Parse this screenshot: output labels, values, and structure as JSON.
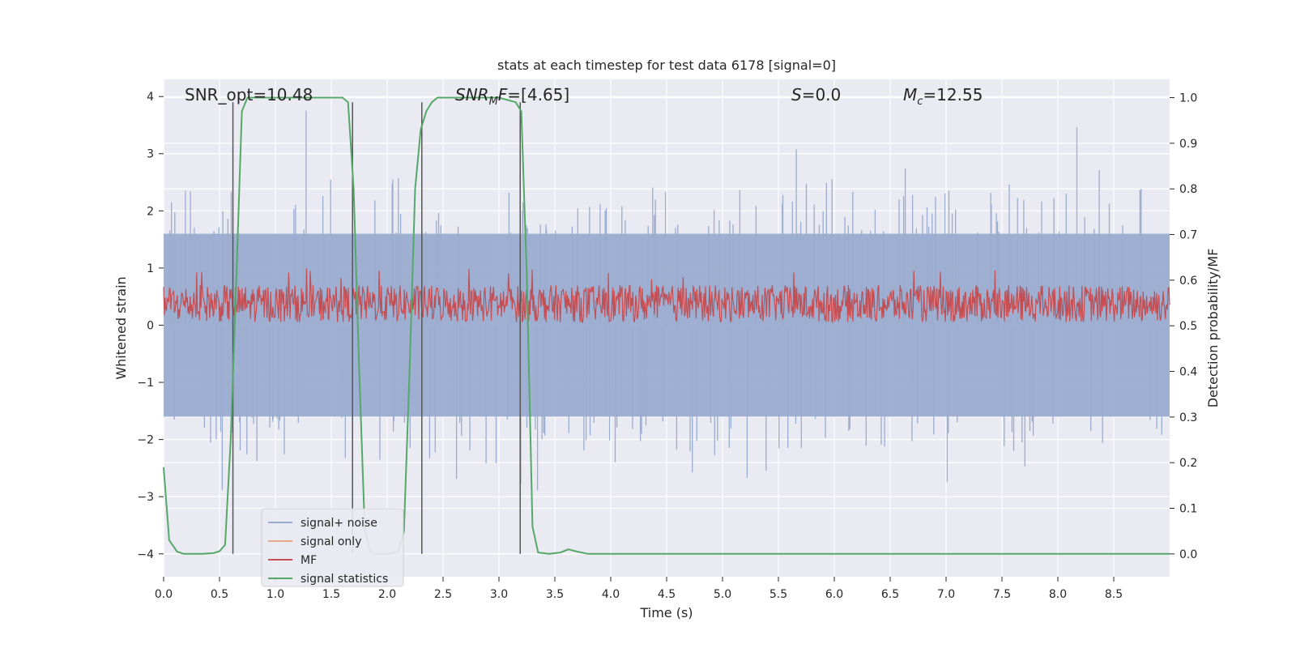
{
  "chart_data": {
    "type": "line",
    "title": "stats at each timestep for test data 6178 [signal=0]",
    "xlabel": "Time (s)",
    "ylabel_left": "Whitened strain",
    "ylabel_right": "Detection probability/MF",
    "xlim": [
      0.0,
      9.0
    ],
    "ylim_left": [
      -4.4,
      4.3
    ],
    "ylim_right": [
      -0.05,
      1.04
    ],
    "xticks": [
      "0.0",
      "0.5",
      "1.0",
      "1.5",
      "2.0",
      "2.5",
      "3.0",
      "3.5",
      "4.0",
      "4.5",
      "5.0",
      "5.5",
      "6.0",
      "6.5",
      "7.0",
      "7.5",
      "8.0",
      "8.5"
    ],
    "xtick_values": [
      0.0,
      0.5,
      1.0,
      1.5,
      2.0,
      2.5,
      3.0,
      3.5,
      4.0,
      4.5,
      5.0,
      5.5,
      6.0,
      6.5,
      7.0,
      7.5,
      8.0,
      8.5
    ],
    "yticks_left": [
      "−4",
      "−3",
      "−2",
      "−1",
      "0",
      "1",
      "2",
      "3",
      "4"
    ],
    "ytick_values_left": [
      -4,
      -3,
      -2,
      -1,
      0,
      1,
      2,
      3,
      4
    ],
    "yticks_right": [
      "0.0",
      "0.1",
      "0.2",
      "0.3",
      "0.4",
      "0.5",
      "0.6",
      "0.7",
      "0.8",
      "0.9",
      "1.0"
    ],
    "ytick_values_right": [
      0.0,
      0.1,
      0.2,
      0.3,
      0.4,
      0.5,
      0.6,
      0.7,
      0.8,
      0.9,
      1.0
    ],
    "annotations": {
      "snr_opt": "SNR_opt=10.48",
      "snr_mf_base": "SNR",
      "snr_mf_sub": "M",
      "snr_mf_rest": "F=[4.65]",
      "s_var": "S",
      "s_rest": "=0.0",
      "mc_var": "M",
      "mc_sub": "c",
      "mc_rest": "=12.55"
    },
    "legend": {
      "position": "lower-left",
      "entries": [
        {
          "label": "signal+ noise",
          "color": "#9aaccf"
        },
        {
          "label": "signal only",
          "color": "#e8a68a"
        },
        {
          "label": "MF",
          "color": "#c44e52"
        },
        {
          "label": "signal statistics",
          "color": "#55a868"
        }
      ]
    },
    "series": [
      {
        "name": "signal+ noise",
        "axis": "left",
        "color": "#9aaccf",
        "description": "whitened noise, |strain| mostly within ±1.6 with peaks near ±3.9",
        "envelope": [
          -1.6,
          1.6
        ],
        "peak_range": [
          -4.0,
          3.9
        ]
      },
      {
        "name": "MF",
        "axis": "left",
        "color": "#c44e52",
        "band": [
          0.05,
          0.7
        ],
        "max_peak": 1.0
      },
      {
        "name": "signal statistics",
        "axis": "right",
        "color": "#55a868",
        "x": [
          0.0,
          0.05,
          0.12,
          0.18,
          0.25,
          0.35,
          0.45,
          0.5,
          0.55,
          0.6,
          0.65,
          0.7,
          0.75,
          0.8,
          1.0,
          1.2,
          1.4,
          1.6,
          1.65,
          1.7,
          1.75,
          1.8,
          1.85,
          1.9,
          2.0,
          2.1,
          2.15,
          2.2,
          2.25,
          2.3,
          2.35,
          2.4,
          2.45,
          2.6,
          2.8,
          3.0,
          3.15,
          3.2,
          3.25,
          3.3,
          3.35,
          3.45,
          3.55,
          3.62,
          3.7,
          3.8,
          4.0,
          5.0,
          6.0,
          7.0,
          8.0,
          9.0
        ],
        "values": [
          0.19,
          0.03,
          0.005,
          0.0,
          0.0,
          0.0,
          0.002,
          0.006,
          0.02,
          0.25,
          0.6,
          0.97,
          1.0,
          1.0,
          1.0,
          1.0,
          1.0,
          1.0,
          0.99,
          0.8,
          0.4,
          0.05,
          0.005,
          0.0,
          0.0,
          0.005,
          0.05,
          0.4,
          0.8,
          0.93,
          0.97,
          0.99,
          1.0,
          1.0,
          1.0,
          1.0,
          0.99,
          0.97,
          0.6,
          0.06,
          0.003,
          0.0,
          0.003,
          0.01,
          0.005,
          0.0,
          0.0,
          0.0,
          0.0,
          0.0,
          0.0,
          0.0
        ]
      }
    ],
    "vertical_lines": {
      "color": "#555555",
      "x": [
        0.62,
        1.69,
        2.31,
        3.19
      ],
      "y_range_left": [
        -4.0,
        3.9
      ]
    }
  }
}
